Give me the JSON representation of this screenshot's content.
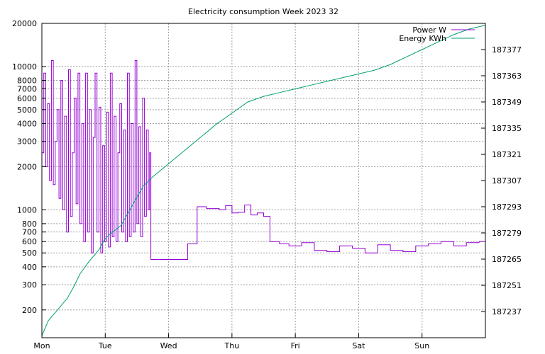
{
  "chart_data": {
    "type": "line",
    "title": "Electricity consumption Week 2023 32",
    "x_categories": [
      "Mon",
      "Tue",
      "Wed",
      "Thu",
      "Fri",
      "Sat",
      "Sun"
    ],
    "x_range_days": [
      0,
      7
    ],
    "y_left": {
      "scale": "log",
      "range": [
        128,
        20000
      ],
      "ticks": [
        200,
        300,
        400,
        500,
        600,
        700,
        800,
        1000,
        2000,
        3000,
        4000,
        5000,
        6000,
        7000,
        8000,
        10000,
        20000
      ],
      "tick_labels": [
        "200",
        "300",
        "400",
        "500",
        "600",
        "700",
        "800",
        "1000",
        "2000",
        "3000",
        "4000",
        "5000",
        "6000",
        "7000",
        "8000",
        "10000",
        "20000"
      ]
    },
    "y_right": {
      "scale": "linear",
      "range": [
        187223,
        187391
      ],
      "ticks": [
        187237,
        187251,
        187265,
        187279,
        187293,
        187307,
        187321,
        187335,
        187349,
        187363,
        187377
      ],
      "tick_labels": [
        "187237",
        "187251",
        "187265",
        "187279",
        "187293",
        "187307",
        "187321",
        "187335",
        "187349",
        "187363",
        "187377"
      ]
    },
    "grid": true,
    "legend_position": "top-right",
    "series": [
      {
        "name": "Power W",
        "axis": "left",
        "color": "#9400d3",
        "style": "step",
        "x": [
          0,
          0.03,
          0.06,
          0.09,
          0.12,
          0.15,
          0.18,
          0.21,
          0.24,
          0.27,
          0.3,
          0.33,
          0.36,
          0.39,
          0.42,
          0.45,
          0.48,
          0.51,
          0.54,
          0.57,
          0.6,
          0.63,
          0.66,
          0.69,
          0.72,
          0.75,
          0.78,
          0.81,
          0.84,
          0.87,
          0.9,
          0.93,
          0.96,
          0.99,
          1.02,
          1.05,
          1.08,
          1.11,
          1.14,
          1.17,
          1.2,
          1.23,
          1.26,
          1.29,
          1.32,
          1.35,
          1.38,
          1.41,
          1.44,
          1.47,
          1.5,
          1.53,
          1.56,
          1.59,
          1.62,
          1.65,
          1.68,
          1.7,
          1.72,
          2.3,
          2.45,
          2.6,
          2.8,
          2.9,
          3.0,
          3.1,
          3.2,
          3.3,
          3.4,
          3.5,
          3.6,
          3.75,
          3.9,
          4.1,
          4.3,
          4.5,
          4.7,
          4.9,
          5.1,
          5.3,
          5.5,
          5.7,
          5.9,
          6.1,
          6.3,
          6.5,
          6.7,
          6.9,
          7.0
        ],
        "values": [
          2500,
          9000,
          2000,
          5500,
          1600,
          11000,
          1500,
          3000,
          5000,
          1200,
          8000,
          1000,
          4500,
          700,
          9500,
          900,
          2500,
          6000,
          1100,
          9000,
          800,
          4000,
          600,
          9000,
          700,
          5000,
          500,
          3200,
          9000,
          700,
          5200,
          500,
          2800,
          600,
          4800,
          550,
          9000,
          650,
          4500,
          600,
          2500,
          5500,
          700,
          3600,
          600,
          9000,
          650,
          4000,
          700,
          11000,
          800,
          3800,
          650,
          6000,
          900,
          3600,
          1000,
          2500,
          450,
          580,
          1050,
          1020,
          1000,
          1070,
          950,
          960,
          1080,
          920,
          950,
          900,
          600,
          580,
          560,
          590,
          520,
          510,
          560,
          540,
          500,
          570,
          520,
          510,
          560,
          580,
          600,
          560,
          590,
          600,
          580
        ]
      },
      {
        "name": "Energy KWh",
        "axis": "right",
        "color": "#009e73",
        "style": "line",
        "x": [
          0,
          0.1,
          0.25,
          0.4,
          0.5,
          0.6,
          0.75,
          0.9,
          1.0,
          1.1,
          1.25,
          1.4,
          1.5,
          1.6,
          1.75,
          2.0,
          2.25,
          2.5,
          2.75,
          3.0,
          3.25,
          3.5,
          3.75,
          4.0,
          4.25,
          4.5,
          4.75,
          5.0,
          5.25,
          5.5,
          5.75,
          6.0,
          6.25,
          6.5,
          6.75,
          7.0
        ],
        "values": [
          187224,
          187232,
          187238,
          187244,
          187250,
          187257,
          187264,
          187270,
          187276,
          187279,
          187283,
          187292,
          187298,
          187304,
          187309,
          187316,
          187323,
          187330,
          187337,
          187343,
          187349,
          187352,
          187354,
          187356,
          187358,
          187360,
          187362,
          187364,
          187366,
          187369,
          187373,
          187377,
          187381,
          187385,
          187388,
          187390
        ]
      }
    ]
  }
}
